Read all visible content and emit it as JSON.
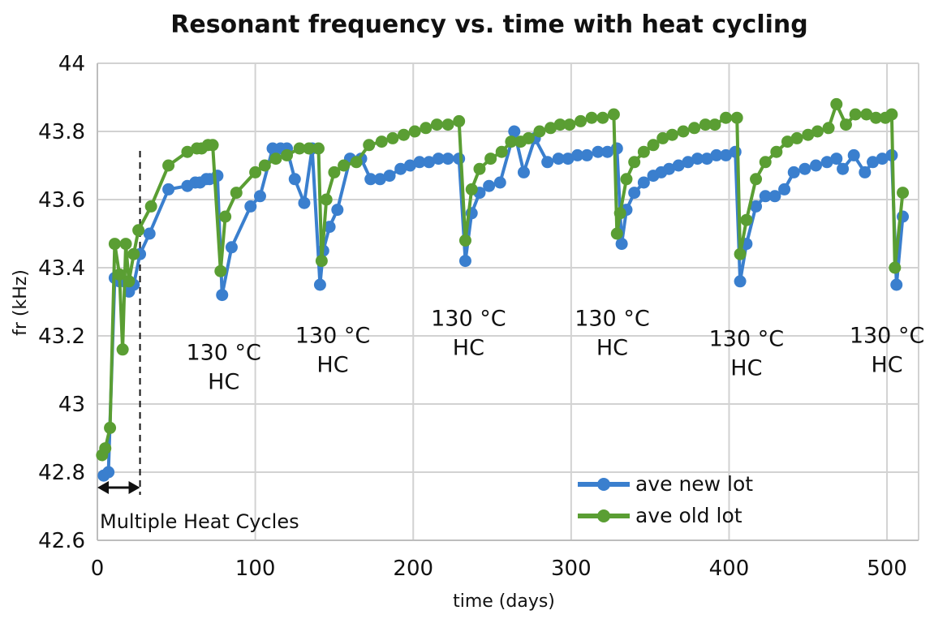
{
  "chart_data": {
    "type": "line",
    "title": "Resonant frequency vs. time with heat cycling",
    "xlabel": "time (days)",
    "ylabel": "fr (kHz)",
    "xlim": [
      0,
      520
    ],
    "ylim": [
      42.6,
      44.0
    ],
    "x_ticks": [
      0,
      100,
      200,
      300,
      400,
      500
    ],
    "x_tick_labels": [
      "0",
      "100",
      "200",
      "300",
      "400",
      "500"
    ],
    "y_ticks": [
      42.6,
      42.8,
      43.0,
      43.2,
      43.4,
      43.6,
      43.8,
      44.0
    ],
    "y_tick_labels": [
      "42.6",
      "42.8",
      "43",
      "43.2",
      "43.4",
      "43.6",
      "43.8",
      "44"
    ],
    "grid": true,
    "legend_position": "bottom-right",
    "series": [
      {
        "name": "ave new lot",
        "color": "#3a7fce",
        "x": [
          4,
          7,
          11,
          14,
          17,
          20,
          23,
          27,
          33,
          45,
          57,
          62,
          65,
          69,
          71,
          76,
          79,
          85,
          97,
          103,
          111,
          116,
          120,
          125,
          131,
          136,
          141,
          143,
          147,
          152,
          160,
          167,
          173,
          179,
          185,
          192,
          198,
          204,
          210,
          216,
          222,
          229,
          233,
          237,
          242,
          248,
          255,
          264,
          270,
          277,
          285,
          292,
          298,
          304,
          310,
          317,
          323,
          329,
          332,
          335,
          340,
          346,
          352,
          357,
          362,
          368,
          374,
          380,
          386,
          392,
          398,
          404,
          407,
          411,
          417,
          423,
          429,
          435,
          441,
          448,
          455,
          462,
          468,
          472,
          479,
          486,
          491,
          497,
          503,
          506,
          510
        ],
        "y": [
          42.79,
          42.8,
          43.37,
          43.36,
          43.36,
          43.33,
          43.35,
          43.44,
          43.5,
          43.63,
          43.64,
          43.65,
          43.65,
          43.66,
          43.66,
          43.67,
          43.32,
          43.46,
          43.58,
          43.61,
          43.75,
          43.75,
          43.75,
          43.66,
          43.59,
          43.75,
          43.35,
          43.45,
          43.52,
          43.57,
          43.72,
          43.72,
          43.66,
          43.66,
          43.67,
          43.69,
          43.7,
          43.71,
          43.71,
          43.72,
          43.72,
          43.72,
          43.42,
          43.56,
          43.62,
          43.64,
          43.65,
          43.8,
          43.68,
          43.78,
          43.71,
          43.72,
          43.72,
          43.73,
          43.73,
          43.74,
          43.74,
          43.75,
          43.47,
          43.57,
          43.62,
          43.65,
          43.67,
          43.68,
          43.69,
          43.7,
          43.71,
          43.72,
          43.72,
          43.73,
          43.73,
          43.74,
          43.36,
          43.47,
          43.58,
          43.61,
          43.61,
          43.63,
          43.68,
          43.69,
          43.7,
          43.71,
          43.72,
          43.69,
          43.73,
          43.68,
          43.71,
          43.72,
          43.73,
          43.35,
          43.55
        ]
      },
      {
        "name": "ave old lot",
        "color": "#5a9e33",
        "x": [
          3,
          5,
          8,
          11,
          14,
          16,
          18,
          20,
          23,
          26,
          34,
          45,
          57,
          63,
          66,
          70,
          73,
          78,
          81,
          88,
          100,
          106,
          113,
          120,
          128,
          134,
          140,
          142,
          145,
          150,
          156,
          164,
          172,
          180,
          187,
          194,
          201,
          208,
          215,
          222,
          229,
          233,
          237,
          242,
          249,
          256,
          262,
          268,
          273,
          280,
          287,
          293,
          299,
          306,
          313,
          320,
          327,
          329,
          331,
          335,
          340,
          346,
          352,
          358,
          364,
          371,
          378,
          385,
          391,
          398,
          405,
          407,
          411,
          417,
          423,
          430,
          437,
          443,
          450,
          456,
          463,
          468,
          474,
          480,
          487,
          493,
          499,
          503,
          505,
          510
        ],
        "y": [
          42.85,
          42.87,
          42.93,
          43.47,
          43.38,
          43.16,
          43.47,
          43.36,
          43.44,
          43.51,
          43.58,
          43.7,
          43.74,
          43.75,
          43.75,
          43.76,
          43.76,
          43.39,
          43.55,
          43.62,
          43.68,
          43.7,
          43.72,
          43.73,
          43.75,
          43.75,
          43.75,
          43.42,
          43.6,
          43.68,
          43.7,
          43.71,
          43.76,
          43.77,
          43.78,
          43.79,
          43.8,
          43.81,
          43.82,
          43.82,
          43.83,
          43.48,
          43.63,
          43.69,
          43.72,
          43.74,
          43.77,
          43.77,
          43.78,
          43.8,
          43.81,
          43.82,
          43.82,
          43.83,
          43.84,
          43.84,
          43.85,
          43.5,
          43.56,
          43.66,
          43.71,
          43.74,
          43.76,
          43.78,
          43.79,
          43.8,
          43.81,
          43.82,
          43.82,
          43.84,
          43.84,
          43.44,
          43.54,
          43.66,
          43.71,
          43.74,
          43.77,
          43.78,
          43.79,
          43.8,
          43.81,
          43.88,
          43.82,
          43.85,
          43.85,
          43.84,
          43.84,
          43.85,
          43.4,
          43.62
        ]
      }
    ],
    "annotations": [
      {
        "text": "130 °C",
        "line2": "HC",
        "near_x": 80,
        "near_y": 43.13
      },
      {
        "text": "130 °C",
        "line2": "HC",
        "near_x": 149,
        "near_y": 43.18
      },
      {
        "text": "130 °C",
        "line2": "HC",
        "near_x": 235,
        "near_y": 43.23
      },
      {
        "text": "130 °C",
        "line2": "HC",
        "near_x": 326,
        "near_y": 43.23
      },
      {
        "text": "130 °C",
        "line2": "HC",
        "near_x": 411,
        "near_y": 43.17
      },
      {
        "text": "130 °C",
        "line2": "HC",
        "near_x": 500,
        "near_y": 43.18
      }
    ],
    "bracket_label": "Multiple Heat Cycles",
    "bracket_x_end": 27
  }
}
